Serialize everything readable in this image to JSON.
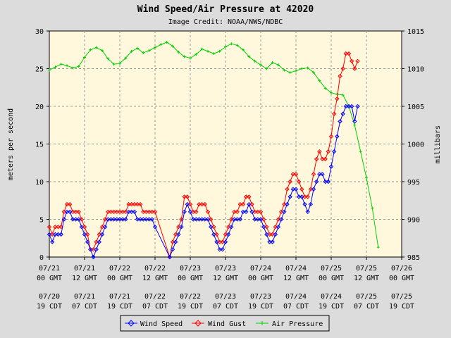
{
  "chart_data": {
    "type": "line",
    "title": "Wind Speed/Air Pressure at 42020",
    "subtitle": "Image Credit: NOAA/NWS/NDBC",
    "ylabel_left": "meters per second",
    "ylabel_right": "millibars",
    "ylim_left": [
      0,
      30
    ],
    "ylim_right": [
      985,
      1015
    ],
    "yticks_left": [
      "0",
      "5",
      "10",
      "15",
      "20",
      "25",
      "30"
    ],
    "yticks_right": [
      "985",
      "990",
      "995",
      "1000",
      "1005",
      "1010",
      "1015"
    ],
    "x_unit": "hours",
    "xlim": [
      0,
      120
    ],
    "xticks_gmt": [
      {
        "x": 0,
        "l1": "07/21",
        "l2": "00 GMT"
      },
      {
        "x": 12,
        "l1": "07/21",
        "l2": "12 GMT"
      },
      {
        "x": 24,
        "l1": "07/22",
        "l2": "00 GMT"
      },
      {
        "x": 36,
        "l1": "07/22",
        "l2": "12 GMT"
      },
      {
        "x": 48,
        "l1": "07/23",
        "l2": "00 GMT"
      },
      {
        "x": 60,
        "l1": "07/23",
        "l2": "12 GMT"
      },
      {
        "x": 72,
        "l1": "07/24",
        "l2": "00 GMT"
      },
      {
        "x": 84,
        "l1": "07/24",
        "l2": "12 GMT"
      },
      {
        "x": 96,
        "l1": "07/25",
        "l2": "00 GMT"
      },
      {
        "x": 108,
        "l1": "07/25",
        "l2": "12 GMT"
      },
      {
        "x": 120,
        "l1": "07/26",
        "l2": "00 GMT"
      }
    ],
    "xticks_cdt": [
      {
        "x": 0,
        "l1": "07/20",
        "l2": "19 CDT"
      },
      {
        "x": 12,
        "l1": "07/21",
        "l2": "07 CDT"
      },
      {
        "x": 24,
        "l1": "07/21",
        "l2": "19 CDT"
      },
      {
        "x": 36,
        "l1": "07/22",
        "l2": "07 CDT"
      },
      {
        "x": 48,
        "l1": "07/22",
        "l2": "19 CDT"
      },
      {
        "x": 60,
        "l1": "07/23",
        "l2": "07 CDT"
      },
      {
        "x": 72,
        "l1": "07/23",
        "l2": "19 CDT"
      },
      {
        "x": 84,
        "l1": "07/24",
        "l2": "07 CDT"
      },
      {
        "x": 96,
        "l1": "07/24",
        "l2": "19 CDT"
      },
      {
        "x": 108,
        "l1": "07/25",
        "l2": "07 CDT"
      },
      {
        "x": 120,
        "l1": "07/25",
        "l2": "19 CDT"
      }
    ],
    "grid": true,
    "legend_placement": "bottom",
    "series": [
      {
        "name": "Wind Speed",
        "color": "#0000ff",
        "axis": "left",
        "marker": "diamond",
        "points": [
          [
            0,
            3
          ],
          [
            1,
            2
          ],
          [
            2,
            3
          ],
          [
            3,
            3
          ],
          [
            4,
            3
          ],
          [
            5,
            5
          ],
          [
            6,
            6
          ],
          [
            7,
            6
          ],
          [
            8,
            5
          ],
          [
            9,
            5
          ],
          [
            10,
            5
          ],
          [
            11,
            4
          ],
          [
            12,
            3
          ],
          [
            13,
            2
          ],
          [
            14,
            1
          ],
          [
            15,
            0
          ],
          [
            16,
            1
          ],
          [
            17,
            2
          ],
          [
            18,
            3
          ],
          [
            19,
            4
          ],
          [
            20,
            5
          ],
          [
            21,
            5
          ],
          [
            22,
            5
          ],
          [
            23,
            5
          ],
          [
            24,
            5
          ],
          [
            25,
            5
          ],
          [
            26,
            5
          ],
          [
            27,
            6
          ],
          [
            28,
            6
          ],
          [
            29,
            6
          ],
          [
            30,
            5
          ],
          [
            31,
            5
          ],
          [
            32,
            5
          ],
          [
            33,
            5
          ],
          [
            34,
            5
          ],
          [
            35,
            5
          ],
          [
            36,
            4
          ],
          [
            41,
            0
          ],
          [
            42,
            1
          ],
          [
            43,
            2
          ],
          [
            44,
            3
          ],
          [
            45,
            4
          ],
          [
            46,
            6
          ],
          [
            47,
            7
          ],
          [
            48,
            6
          ],
          [
            49,
            5
          ],
          [
            50,
            5
          ],
          [
            51,
            5
          ],
          [
            52,
            5
          ],
          [
            53,
            5
          ],
          [
            54,
            5
          ],
          [
            55,
            4
          ],
          [
            56,
            3
          ],
          [
            57,
            2
          ],
          [
            58,
            1
          ],
          [
            59,
            1
          ],
          [
            60,
            2
          ],
          [
            61,
            3
          ],
          [
            62,
            4
          ],
          [
            63,
            5
          ],
          [
            64,
            5
          ],
          [
            65,
            5
          ],
          [
            66,
            6
          ],
          [
            67,
            6
          ],
          [
            68,
            7
          ],
          [
            69,
            6
          ],
          [
            70,
            5
          ],
          [
            71,
            5
          ],
          [
            72,
            5
          ],
          [
            73,
            4
          ],
          [
            74,
            3
          ],
          [
            75,
            2
          ],
          [
            76,
            2
          ],
          [
            77,
            3
          ],
          [
            78,
            4
          ],
          [
            79,
            5
          ],
          [
            80,
            6
          ],
          [
            81,
            7
          ],
          [
            82,
            8
          ],
          [
            83,
            9
          ],
          [
            84,
            9
          ],
          [
            85,
            8
          ],
          [
            86,
            8
          ],
          [
            87,
            7
          ],
          [
            88,
            6
          ],
          [
            89,
            7
          ],
          [
            90,
            9
          ],
          [
            91,
            10
          ],
          [
            92,
            11
          ],
          [
            93,
            11
          ],
          [
            94,
            10
          ],
          [
            95,
            10
          ],
          [
            96,
            12
          ],
          [
            97,
            14
          ],
          [
            98,
            16
          ],
          [
            99,
            18
          ],
          [
            100,
            19
          ],
          [
            101,
            20
          ],
          [
            102,
            20
          ],
          [
            103,
            20
          ],
          [
            104,
            18
          ],
          [
            105,
            20
          ]
        ]
      },
      {
        "name": "Wind Gust",
        "color": "#ff0000",
        "axis": "left",
        "marker": "diamond",
        "points": [
          [
            0,
            4
          ],
          [
            1,
            3
          ],
          [
            2,
            4
          ],
          [
            3,
            4
          ],
          [
            4,
            4
          ],
          [
            5,
            6
          ],
          [
            6,
            7
          ],
          [
            7,
            7
          ],
          [
            8,
            6
          ],
          [
            9,
            6
          ],
          [
            10,
            6
          ],
          [
            11,
            5
          ],
          [
            12,
            4
          ],
          [
            13,
            3
          ],
          [
            14,
            1
          ],
          [
            15,
            1
          ],
          [
            16,
            2
          ],
          [
            17,
            3
          ],
          [
            18,
            4
          ],
          [
            19,
            5
          ],
          [
            20,
            6
          ],
          [
            21,
            6
          ],
          [
            22,
            6
          ],
          [
            23,
            6
          ],
          [
            24,
            6
          ],
          [
            25,
            6
          ],
          [
            26,
            6
          ],
          [
            27,
            7
          ],
          [
            28,
            7
          ],
          [
            29,
            7
          ],
          [
            30,
            7
          ],
          [
            31,
            7
          ],
          [
            32,
            6
          ],
          [
            33,
            6
          ],
          [
            34,
            6
          ],
          [
            35,
            6
          ],
          [
            36,
            6
          ],
          [
            41,
            0
          ],
          [
            42,
            2
          ],
          [
            43,
            3
          ],
          [
            44,
            4
          ],
          [
            45,
            5
          ],
          [
            46,
            8
          ],
          [
            47,
            8
          ],
          [
            48,
            7
          ],
          [
            49,
            6
          ],
          [
            50,
            6
          ],
          [
            51,
            7
          ],
          [
            52,
            7
          ],
          [
            53,
            7
          ],
          [
            54,
            6
          ],
          [
            55,
            5
          ],
          [
            56,
            4
          ],
          [
            57,
            3
          ],
          [
            58,
            2
          ],
          [
            59,
            2
          ],
          [
            60,
            3
          ],
          [
            61,
            4
          ],
          [
            62,
            5
          ],
          [
            63,
            6
          ],
          [
            64,
            6
          ],
          [
            65,
            7
          ],
          [
            66,
            7
          ],
          [
            67,
            8
          ],
          [
            68,
            8
          ],
          [
            69,
            7
          ],
          [
            70,
            6
          ],
          [
            71,
            6
          ],
          [
            72,
            6
          ],
          [
            73,
            5
          ],
          [
            74,
            4
          ],
          [
            75,
            3
          ],
          [
            76,
            3
          ],
          [
            77,
            4
          ],
          [
            78,
            5
          ],
          [
            79,
            6
          ],
          [
            80,
            7
          ],
          [
            81,
            9
          ],
          [
            82,
            10
          ],
          [
            83,
            11
          ],
          [
            84,
            11
          ],
          [
            85,
            10
          ],
          [
            86,
            9
          ],
          [
            87,
            8
          ],
          [
            88,
            8
          ],
          [
            89,
            9
          ],
          [
            90,
            11
          ],
          [
            91,
            13
          ],
          [
            92,
            14
          ],
          [
            93,
            13
          ],
          [
            94,
            13
          ],
          [
            95,
            14
          ],
          [
            96,
            16
          ],
          [
            97,
            19
          ],
          [
            98,
            21
          ],
          [
            99,
            24
          ],
          [
            100,
            25
          ],
          [
            101,
            27
          ],
          [
            102,
            27
          ],
          [
            103,
            26
          ],
          [
            104,
            25
          ],
          [
            105,
            26
          ]
        ]
      },
      {
        "name": "Air Pressure",
        "color": "#00d000",
        "axis": "right",
        "marker": "plus",
        "points": [
          [
            0,
            1009.8
          ],
          [
            2,
            1010.2
          ],
          [
            4,
            1010.6
          ],
          [
            6,
            1010.4
          ],
          [
            8,
            1010.1
          ],
          [
            10,
            1010.3
          ],
          [
            12,
            1011.5
          ],
          [
            14,
            1012.5
          ],
          [
            16,
            1012.8
          ],
          [
            18,
            1012.4
          ],
          [
            20,
            1011.3
          ],
          [
            22,
            1010.6
          ],
          [
            24,
            1010.7
          ],
          [
            26,
            1011.4
          ],
          [
            28,
            1012.3
          ],
          [
            30,
            1012.7
          ],
          [
            32,
            1012.1
          ],
          [
            34,
            1012.4
          ],
          [
            36,
            1012.8
          ],
          [
            38,
            1013.2
          ],
          [
            40,
            1013.5
          ],
          [
            42,
            1013.0
          ],
          [
            44,
            1012.2
          ],
          [
            46,
            1011.6
          ],
          [
            48,
            1011.4
          ],
          [
            50,
            1011.9
          ],
          [
            52,
            1012.6
          ],
          [
            54,
            1012.3
          ],
          [
            56,
            1012.0
          ],
          [
            58,
            1012.3
          ],
          [
            60,
            1012.9
          ],
          [
            62,
            1013.3
          ],
          [
            64,
            1013.1
          ],
          [
            66,
            1012.5
          ],
          [
            68,
            1011.6
          ],
          [
            70,
            1011.0
          ],
          [
            72,
            1010.5
          ],
          [
            74,
            1010.0
          ],
          [
            76,
            1010.8
          ],
          [
            78,
            1010.5
          ],
          [
            80,
            1009.8
          ],
          [
            82,
            1009.5
          ],
          [
            84,
            1009.7
          ],
          [
            86,
            1010.0
          ],
          [
            88,
            1010.1
          ],
          [
            90,
            1009.5
          ],
          [
            92,
            1008.4
          ],
          [
            94,
            1007.4
          ],
          [
            96,
            1006.8
          ],
          [
            98,
            1006.6
          ],
          [
            100,
            1006.5
          ],
          [
            102,
            1005.0
          ],
          [
            104,
            1002.5
          ],
          [
            106,
            999.0
          ],
          [
            108,
            995.5
          ],
          [
            110,
            991.5
          ],
          [
            112,
            986.3
          ]
        ]
      }
    ]
  }
}
